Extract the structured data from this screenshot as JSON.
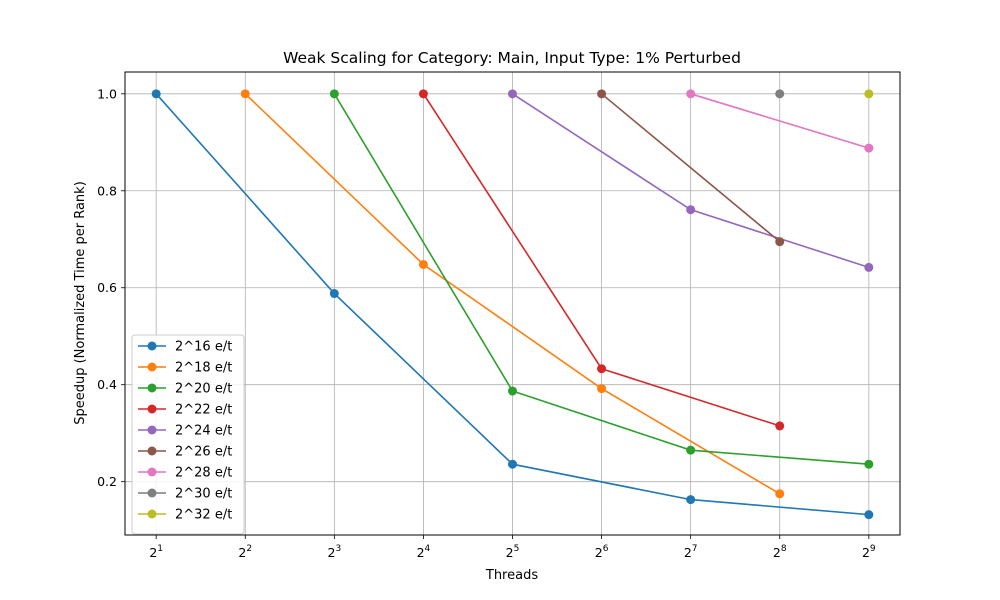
{
  "chart_data": {
    "type": "line",
    "title": "Weak Scaling for Category: Main, Input Type: 1% Perturbed",
    "xlabel": "Threads",
    "ylabel": "Speedup (Normalized Time per Rank)",
    "x_scale": "log2",
    "x_ticks": [
      {
        "value": 2,
        "base": "2",
        "exp": "1"
      },
      {
        "value": 4,
        "base": "2",
        "exp": "2"
      },
      {
        "value": 8,
        "base": "2",
        "exp": "3"
      },
      {
        "value": 16,
        "base": "2",
        "exp": "4"
      },
      {
        "value": 32,
        "base": "2",
        "exp": "5"
      },
      {
        "value": 64,
        "base": "2",
        "exp": "6"
      },
      {
        "value": 128,
        "base": "2",
        "exp": "7"
      },
      {
        "value": 256,
        "base": "2",
        "exp": "8"
      },
      {
        "value": 512,
        "base": "2",
        "exp": "9"
      }
    ],
    "y_ticks": [
      "0.2",
      "0.4",
      "0.6",
      "0.8",
      "1.0"
    ],
    "ylim": [
      0.09,
      1.045
    ],
    "grid": true,
    "legend_position": "lower-left",
    "series": [
      {
        "name": "2^16 e/t",
        "color": "#1f77b4",
        "x": [
          2,
          8,
          32,
          128,
          512
        ],
        "y": [
          1.0,
          0.588,
          0.236,
          0.163,
          0.132
        ]
      },
      {
        "name": "2^18 e/t",
        "color": "#ff7f0e",
        "x": [
          4,
          16,
          64,
          256
        ],
        "y": [
          1.0,
          0.648,
          0.392,
          0.175
        ]
      },
      {
        "name": "2^20 e/t",
        "color": "#2ca02c",
        "x": [
          8,
          32,
          128,
          512
        ],
        "y": [
          1.0,
          0.387,
          0.265,
          0.236
        ]
      },
      {
        "name": "2^22 e/t",
        "color": "#d62728",
        "x": [
          16,
          64,
          256
        ],
        "y": [
          1.0,
          0.433,
          0.315
        ]
      },
      {
        "name": "2^24 e/t",
        "color": "#9467bd",
        "x": [
          32,
          128,
          512
        ],
        "y": [
          1.0,
          0.761,
          0.642
        ]
      },
      {
        "name": "2^26 e/t",
        "color": "#8c564b",
        "x": [
          64,
          256
        ],
        "y": [
          1.0,
          0.695
        ]
      },
      {
        "name": "2^28 e/t",
        "color": "#e377c2",
        "x": [
          128,
          512
        ],
        "y": [
          1.0,
          0.888
        ]
      },
      {
        "name": "2^30 e/t",
        "color": "#7f7f7f",
        "x": [
          256
        ],
        "y": [
          1.0
        ]
      },
      {
        "name": "2^32 e/t",
        "color": "#bcbd22",
        "x": [
          512
        ],
        "y": [
          1.0
        ]
      }
    ]
  }
}
